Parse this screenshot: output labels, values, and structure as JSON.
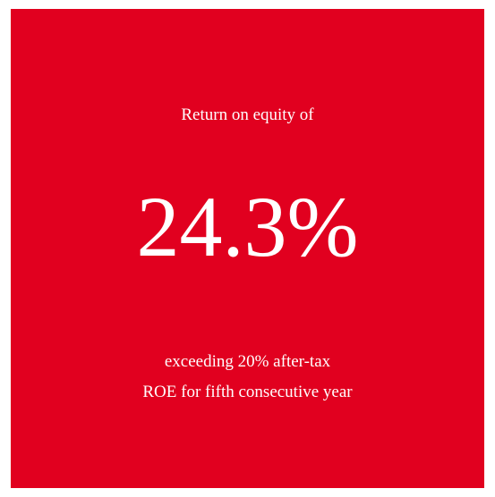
{
  "intro": "Return on equity of",
  "headline": "24.3%",
  "caption": [
    "exceeding 20% after-tax",
    "ROE for fifth consecutive year"
  ]
}
